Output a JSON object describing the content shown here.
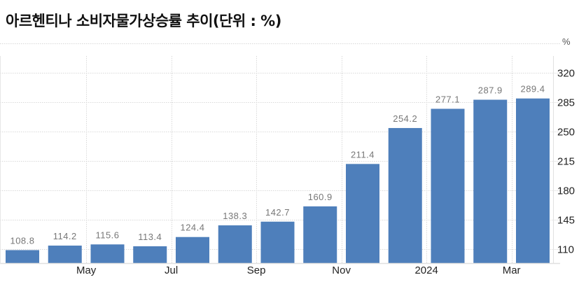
{
  "title": "아르헨티나 소비자물가상승률 추이(단위 : %)",
  "unit_label": "%",
  "colors": {
    "bar": "#4e7fbb",
    "grid": "#d9d9d9",
    "axis": "#e0e0e0",
    "bar_label": "#777777",
    "tick_label": "#222222"
  },
  "chart_data": {
    "type": "bar",
    "title": "아르헨티나 소비자물가상승률 추이(단위 : %)",
    "xlabel": "",
    "ylabel": "%",
    "categories": [
      "2023-04",
      "2023-05",
      "2023-06",
      "2023-07",
      "2023-08",
      "2023-09",
      "2023-10",
      "2023-11",
      "2023-12",
      "2024-01",
      "2024-02",
      "2024-03",
      "2024-04"
    ],
    "values": [
      108.8,
      114.2,
      115.6,
      113.4,
      124.4,
      138.3,
      142.7,
      160.9,
      211.4,
      254.2,
      277.1,
      287.9,
      289.4
    ],
    "value_labels": [
      "108.8",
      "114.2",
      "115.6",
      "113.4",
      "124.4",
      "138.3",
      "142.7",
      "160.9",
      "211.4",
      "254.2",
      "277.1",
      "287.9",
      "289.4"
    ],
    "x_tick_labels": [
      {
        "index": 1,
        "label": "May"
      },
      {
        "index": 3,
        "label": "Jul"
      },
      {
        "index": 5,
        "label": "Sep"
      },
      {
        "index": 7,
        "label": "Nov"
      },
      {
        "index": 9,
        "label": "2024"
      },
      {
        "index": 11,
        "label": "Mar"
      }
    ],
    "y_ticks": [
      110,
      145,
      180,
      215,
      250,
      285,
      320
    ],
    "ylim": [
      93,
      355
    ],
    "grid": true,
    "legend": null,
    "y_axis_position": "right"
  }
}
